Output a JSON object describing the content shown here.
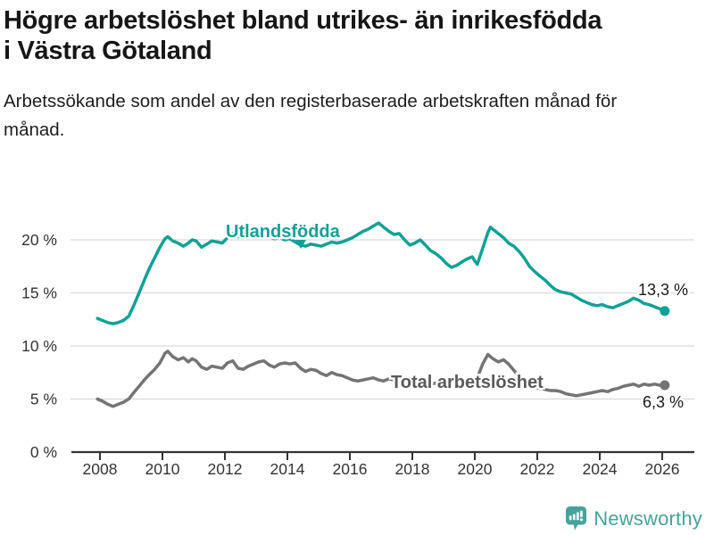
{
  "header": {
    "title": "Högre arbetslöshet bland utrikes- än inrikesfödda i Västra Götaland",
    "subtitle": "Arbetssökande som andel av den registerbaserade arbetskraften månad för månad."
  },
  "branding": {
    "logo_text": "Newsworthy",
    "logo_icon": "bar-chart-speech-bubble-icon",
    "logo_color": "#46a39b"
  },
  "colors": {
    "series_foreign_born": "#10a196",
    "series_total": "#747474",
    "series_total_label": "#5a5a5a",
    "axis_text": "#333333",
    "annotation_text": "#1a1a1a",
    "gridline": "#d9d9d9",
    "axis_line": "#333333"
  },
  "chart_data": {
    "type": "line",
    "title": "Högre arbetslöshet bland utrikes- än inrikesfödda i Västra Götaland",
    "subtitle": "Arbetssökande som andel av den registerbaserade arbetskraften månad för månad.",
    "grid": true,
    "unit": "%",
    "x_axis": {
      "ticks": [
        2008,
        2010,
        2012,
        2014,
        2016,
        2018,
        2020,
        2022,
        2024,
        2026
      ],
      "range": [
        2007.8,
        2026.6
      ]
    },
    "y_axis": {
      "tick_values": [
        0,
        5,
        10,
        15,
        20
      ],
      "tick_labels": [
        "0 %",
        "5 %",
        "10 %",
        "15 %",
        "20 %"
      ],
      "range": [
        0,
        22.5
      ]
    },
    "series": [
      {
        "name": "Utlandsfödda",
        "color": "#10a196",
        "label_color": "#10a196",
        "end_label": "13,3 %",
        "end_value": 13.3,
        "points": [
          [
            2007.92,
            12.6
          ],
          [
            2008.08,
            12.4
          ],
          [
            2008.25,
            12.2
          ],
          [
            2008.42,
            12.1
          ],
          [
            2008.58,
            12.2
          ],
          [
            2008.75,
            12.4
          ],
          [
            2008.92,
            12.8
          ],
          [
            2009.08,
            13.8
          ],
          [
            2009.25,
            15.0
          ],
          [
            2009.42,
            16.2
          ],
          [
            2009.58,
            17.3
          ],
          [
            2009.75,
            18.3
          ],
          [
            2009.92,
            19.3
          ],
          [
            2010.08,
            20.1
          ],
          [
            2010.17,
            20.3
          ],
          [
            2010.33,
            19.9
          ],
          [
            2010.5,
            19.7
          ],
          [
            2010.67,
            19.4
          ],
          [
            2010.83,
            19.7
          ],
          [
            2010.95,
            20.0
          ],
          [
            2011.08,
            19.9
          ],
          [
            2011.25,
            19.3
          ],
          [
            2011.42,
            19.6
          ],
          [
            2011.58,
            19.9
          ],
          [
            2011.75,
            19.8
          ],
          [
            2011.92,
            19.7
          ],
          [
            2012.08,
            20.2
          ],
          [
            2012.25,
            20.6
          ],
          [
            2012.42,
            20.3
          ],
          [
            2012.58,
            20.2
          ],
          [
            2012.75,
            20.4
          ],
          [
            2012.92,
            20.3
          ],
          [
            2013.08,
            20.4
          ],
          [
            2013.25,
            20.6
          ],
          [
            2013.42,
            20.3
          ],
          [
            2013.58,
            20.1
          ],
          [
            2013.75,
            20.2
          ],
          [
            2013.92,
            20.0
          ],
          [
            2014.08,
            20.1
          ],
          [
            2014.25,
            19.8
          ],
          [
            2014.42,
            19.5
          ],
          [
            2014.58,
            19.4
          ],
          [
            2014.75,
            19.6
          ],
          [
            2014.92,
            19.5
          ],
          [
            2015.08,
            19.4
          ],
          [
            2015.25,
            19.6
          ],
          [
            2015.42,
            19.8
          ],
          [
            2015.58,
            19.7
          ],
          [
            2015.75,
            19.8
          ],
          [
            2015.92,
            20.0
          ],
          [
            2016.08,
            20.2
          ],
          [
            2016.25,
            20.5
          ],
          [
            2016.42,
            20.8
          ],
          [
            2016.58,
            21.0
          ],
          [
            2016.75,
            21.3
          ],
          [
            2016.92,
            21.6
          ],
          [
            2017.08,
            21.2
          ],
          [
            2017.25,
            20.8
          ],
          [
            2017.42,
            20.5
          ],
          [
            2017.58,
            20.6
          ],
          [
            2017.75,
            20.0
          ],
          [
            2017.92,
            19.5
          ],
          [
            2018.08,
            19.7
          ],
          [
            2018.25,
            20.0
          ],
          [
            2018.42,
            19.5
          ],
          [
            2018.58,
            19.0
          ],
          [
            2018.75,
            18.7
          ],
          [
            2018.92,
            18.3
          ],
          [
            2019.08,
            17.8
          ],
          [
            2019.25,
            17.4
          ],
          [
            2019.42,
            17.6
          ],
          [
            2019.58,
            17.9
          ],
          [
            2019.75,
            18.2
          ],
          [
            2019.92,
            18.4
          ],
          [
            2020.0,
            18.0
          ],
          [
            2020.08,
            17.7
          ],
          [
            2020.25,
            19.2
          ],
          [
            2020.42,
            20.7
          ],
          [
            2020.5,
            21.2
          ],
          [
            2020.58,
            21.0
          ],
          [
            2020.75,
            20.6
          ],
          [
            2020.92,
            20.2
          ],
          [
            2021.08,
            19.7
          ],
          [
            2021.25,
            19.4
          ],
          [
            2021.42,
            18.9
          ],
          [
            2021.58,
            18.3
          ],
          [
            2021.75,
            17.5
          ],
          [
            2021.92,
            17.0
          ],
          [
            2022.08,
            16.6
          ],
          [
            2022.25,
            16.2
          ],
          [
            2022.42,
            15.7
          ],
          [
            2022.58,
            15.3
          ],
          [
            2022.75,
            15.1
          ],
          [
            2022.92,
            15.0
          ],
          [
            2023.08,
            14.9
          ],
          [
            2023.25,
            14.6
          ],
          [
            2023.42,
            14.3
          ],
          [
            2023.58,
            14.1
          ],
          [
            2023.75,
            13.9
          ],
          [
            2023.92,
            13.8
          ],
          [
            2024.08,
            13.9
          ],
          [
            2024.25,
            13.7
          ],
          [
            2024.42,
            13.6
          ],
          [
            2024.58,
            13.8
          ],
          [
            2024.75,
            14.0
          ],
          [
            2024.92,
            14.2
          ],
          [
            2025.08,
            14.5
          ],
          [
            2025.25,
            14.3
          ],
          [
            2025.42,
            14.0
          ],
          [
            2025.58,
            13.9
          ],
          [
            2025.75,
            13.7
          ],
          [
            2025.92,
            13.5
          ],
          [
            2026.08,
            13.3
          ]
        ]
      },
      {
        "name": "Total arbetslöshet",
        "color": "#747474",
        "label_color": "#5a5a5a",
        "end_label": "6,3 %",
        "end_value": 6.3,
        "points": [
          [
            2007.92,
            5.0
          ],
          [
            2008.08,
            4.8
          ],
          [
            2008.25,
            4.5
          ],
          [
            2008.42,
            4.3
          ],
          [
            2008.58,
            4.5
          ],
          [
            2008.75,
            4.7
          ],
          [
            2008.92,
            5.0
          ],
          [
            2009.08,
            5.6
          ],
          [
            2009.25,
            6.2
          ],
          [
            2009.42,
            6.8
          ],
          [
            2009.58,
            7.3
          ],
          [
            2009.75,
            7.8
          ],
          [
            2009.92,
            8.4
          ],
          [
            2010.08,
            9.3
          ],
          [
            2010.17,
            9.5
          ],
          [
            2010.33,
            9.0
          ],
          [
            2010.5,
            8.7
          ],
          [
            2010.67,
            8.9
          ],
          [
            2010.83,
            8.5
          ],
          [
            2010.95,
            8.8
          ],
          [
            2011.08,
            8.6
          ],
          [
            2011.25,
            8.0
          ],
          [
            2011.42,
            7.8
          ],
          [
            2011.58,
            8.1
          ],
          [
            2011.75,
            8.0
          ],
          [
            2011.92,
            7.9
          ],
          [
            2012.08,
            8.4
          ],
          [
            2012.25,
            8.6
          ],
          [
            2012.42,
            7.9
          ],
          [
            2012.58,
            7.8
          ],
          [
            2012.75,
            8.1
          ],
          [
            2012.92,
            8.3
          ],
          [
            2013.08,
            8.5
          ],
          [
            2013.25,
            8.6
          ],
          [
            2013.42,
            8.2
          ],
          [
            2013.58,
            8.0
          ],
          [
            2013.75,
            8.3
          ],
          [
            2013.92,
            8.4
          ],
          [
            2014.08,
            8.3
          ],
          [
            2014.25,
            8.4
          ],
          [
            2014.42,
            7.9
          ],
          [
            2014.58,
            7.6
          ],
          [
            2014.75,
            7.8
          ],
          [
            2014.92,
            7.7
          ],
          [
            2015.08,
            7.4
          ],
          [
            2015.25,
            7.2
          ],
          [
            2015.42,
            7.5
          ],
          [
            2015.58,
            7.3
          ],
          [
            2015.75,
            7.2
          ],
          [
            2015.92,
            7.0
          ],
          [
            2016.08,
            6.8
          ],
          [
            2016.25,
            6.7
          ],
          [
            2016.42,
            6.8
          ],
          [
            2016.58,
            6.9
          ],
          [
            2016.75,
            7.0
          ],
          [
            2016.92,
            6.8
          ],
          [
            2017.08,
            6.7
          ],
          [
            2017.25,
            6.9
          ],
          [
            2017.42,
            6.8
          ],
          [
            2017.58,
            6.7
          ],
          [
            2017.75,
            6.6
          ],
          [
            2017.92,
            6.5
          ],
          [
            2018.08,
            6.5
          ],
          [
            2018.25,
            6.4
          ],
          [
            2018.42,
            6.5
          ],
          [
            2018.58,
            6.4
          ],
          [
            2018.75,
            6.5
          ],
          [
            2018.92,
            6.6
          ],
          [
            2019.08,
            6.5
          ],
          [
            2019.25,
            6.6
          ],
          [
            2019.42,
            6.7
          ],
          [
            2019.58,
            6.6
          ],
          [
            2019.75,
            6.7
          ],
          [
            2019.92,
            6.8
          ],
          [
            2020.08,
            7.0
          ],
          [
            2020.25,
            8.3
          ],
          [
            2020.42,
            9.2
          ],
          [
            2020.5,
            9.0
          ],
          [
            2020.58,
            8.8
          ],
          [
            2020.75,
            8.5
          ],
          [
            2020.92,
            8.7
          ],
          [
            2021.08,
            8.3
          ],
          [
            2021.25,
            7.7
          ],
          [
            2021.42,
            7.1
          ],
          [
            2021.58,
            6.7
          ],
          [
            2021.75,
            6.3
          ],
          [
            2021.92,
            6.1
          ],
          [
            2022.08,
            6.0
          ],
          [
            2022.25,
            5.9
          ],
          [
            2022.42,
            5.8
          ],
          [
            2022.58,
            5.8
          ],
          [
            2022.75,
            5.7
          ],
          [
            2022.92,
            5.5
          ],
          [
            2023.08,
            5.4
          ],
          [
            2023.25,
            5.3
          ],
          [
            2023.42,
            5.4
          ],
          [
            2023.58,
            5.5
          ],
          [
            2023.75,
            5.6
          ],
          [
            2023.92,
            5.7
          ],
          [
            2024.08,
            5.8
          ],
          [
            2024.25,
            5.7
          ],
          [
            2024.42,
            5.9
          ],
          [
            2024.58,
            6.0
          ],
          [
            2024.75,
            6.2
          ],
          [
            2024.92,
            6.3
          ],
          [
            2025.08,
            6.4
          ],
          [
            2025.25,
            6.2
          ],
          [
            2025.42,
            6.4
          ],
          [
            2025.58,
            6.3
          ],
          [
            2025.75,
            6.4
          ],
          [
            2025.92,
            6.3
          ],
          [
            2026.08,
            6.3
          ]
        ]
      }
    ]
  }
}
